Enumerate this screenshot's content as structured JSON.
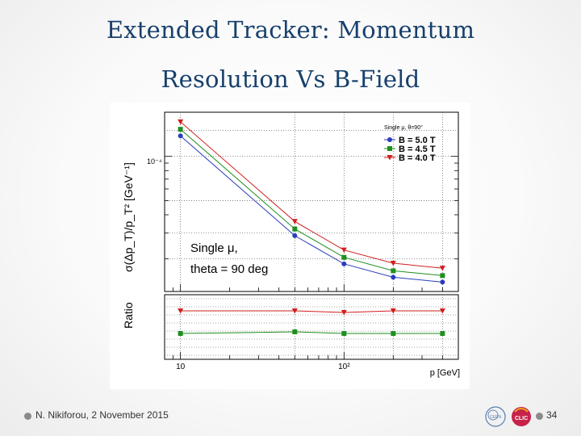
{
  "slide": {
    "title_line1": "Extended Tracker: Momentum",
    "title_line2": "Resolution Vs B-Field",
    "footer_author": "N. Nikiforou, 2 November 2015",
    "page_number": "34",
    "logo_text_left": "CERN",
    "logo_text_right": "CLIC"
  },
  "chart_data": [
    {
      "type": "line",
      "title": "",
      "annotation_line1": "Single μ,",
      "annotation_line2": "theta = 90 deg",
      "legend_title": "Single μ, θ=90°",
      "xlabel": "p [GeV]",
      "ylabel": "σ(Δp_T)/p_T² [GeV⁻¹]",
      "xscale": "log",
      "yscale": "log",
      "xlim": [
        8,
        500
      ],
      "ylim": [
        1.2e-05,
        0.0002
      ],
      "x_tick_labels": [
        "10",
        "10²"
      ],
      "y_tick_labels": [
        "10⁻⁴"
      ],
      "x": [
        10,
        50,
        100,
        200,
        400
      ],
      "series": [
        {
          "name": "B = 5.0 T",
          "color": "#2b3dbd",
          "marker": "circle",
          "values": [
            0.000138,
            2.88e-05,
            1.85e-05,
            1.5e-05,
            1.39e-05
          ]
        },
        {
          "name": "B = 4.5 T",
          "color": "#1f8f1f",
          "marker": "square",
          "values": [
            0.000153,
            3.2e-05,
            2.05e-05,
            1.66e-05,
            1.54e-05
          ]
        },
        {
          "name": "B = 4.0 T",
          "color": "#d11e1e",
          "marker": "triangle-down",
          "values": [
            0.000172,
            3.6e-05,
            2.3e-05,
            1.87e-05,
            1.73e-05
          ]
        }
      ]
    },
    {
      "type": "line",
      "title": "",
      "ylabel": "Ratio",
      "xlabel": "p [GeV]",
      "xscale": "log",
      "xlim": [
        8,
        500
      ],
      "ylim": [
        0.95,
        1.35
      ],
      "x": [
        10,
        50,
        100,
        200,
        400
      ],
      "series": [
        {
          "name": "B = 4.5 T",
          "color": "#1f8f1f",
          "marker": "square",
          "values": [
            1.11,
            1.12,
            1.11,
            1.11,
            1.11
          ]
        },
        {
          "name": "B = 4.0 T",
          "color": "#d11e1e",
          "marker": "triangle-down",
          "values": [
            1.25,
            1.25,
            1.24,
            1.25,
            1.25
          ]
        }
      ]
    }
  ]
}
